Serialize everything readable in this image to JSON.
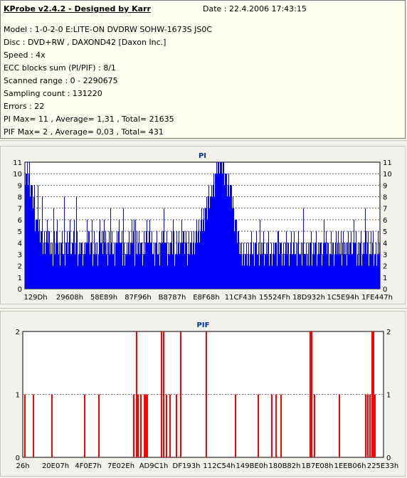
{
  "header": {
    "title": "KProbe v2.4.2 - Designed by Karr",
    "date": "Date : 22.4.2006 17:43:15"
  },
  "info_lines": [
    "Model : 1-0-2-0 E:LITE-ON DVDRW SOHW-1673S JS0C",
    "Disc : DVD+RW , DAXOND42 [Daxon Inc.]",
    "Speed : 4x",
    "ECC blocks sum (PI/PIF) : 8/1",
    "Scanned range : 0 - 2290675",
    "Sampling count : 131220",
    "Errors : 22",
    "PI Max= 11 , Average= 1,31 , Total= 21635",
    "PIF Max= 2 , Average= 0,03 , Total= 431"
  ],
  "colors": {
    "pi": "#0000ff",
    "pif": "#ff0000",
    "title": "#003399",
    "grid": "#000000"
  },
  "chart_data": [
    {
      "type": "bar",
      "title": "PI",
      "ylim": [
        0,
        11
      ],
      "yticks": [
        0,
        1,
        2,
        3,
        4,
        5,
        6,
        7,
        8,
        9,
        10,
        11
      ],
      "xtick_labels": [
        "129Dh",
        "29608h",
        "58E89h",
        "87F96h",
        "B8787h",
        "E8F68h",
        "11CF43h",
        "15524Fh",
        "18D932h",
        "1C5E94h",
        "1FE447h"
      ],
      "profile_start": [
        10,
        10,
        9,
        8,
        6,
        5,
        5,
        4,
        4,
        5,
        4,
        3,
        4,
        5,
        3,
        4,
        3,
        4,
        4,
        3,
        5,
        4,
        3,
        4,
        3,
        4,
        5,
        4,
        3,
        4,
        3,
        4,
        4,
        5,
        3,
        4,
        4,
        3,
        4,
        5,
        4,
        3,
        3,
        4,
        4,
        5,
        3,
        4,
        4,
        3,
        4,
        5,
        4,
        4,
        3,
        4,
        3,
        4,
        5,
        4,
        3,
        4,
        4,
        3,
        4,
        4,
        5,
        4,
        3,
        4,
        4,
        4,
        5,
        5,
        6,
        6,
        7,
        8,
        8,
        9,
        10,
        11,
        11,
        11,
        10,
        9,
        9,
        8,
        6,
        5,
        4,
        3,
        3,
        3,
        3,
        4,
        3,
        4,
        3,
        3,
        4,
        3,
        4,
        3,
        3,
        4,
        3,
        4,
        3,
        3,
        4,
        3,
        4,
        3,
        3,
        4,
        3,
        4,
        3,
        3,
        4,
        3,
        4,
        3,
        4,
        3,
        4,
        4,
        3,
        4,
        3,
        4,
        4,
        3,
        4,
        3,
        4,
        4,
        3,
        4,
        3,
        4,
        3,
        4,
        4,
        3,
        4,
        3,
        3,
        4
      ],
      "spikes": [
        [
          3,
          11
        ],
        [
          6,
          10
        ],
        [
          18,
          9
        ],
        [
          24,
          8
        ],
        [
          40,
          7
        ],
        [
          55,
          8
        ],
        [
          63,
          6
        ],
        [
          72,
          8
        ],
        [
          94,
          6
        ],
        [
          105,
          6
        ],
        [
          120,
          7
        ],
        [
          138,
          7
        ],
        [
          155,
          6
        ],
        [
          175,
          6
        ],
        [
          195,
          7
        ],
        [
          208,
          6
        ],
        [
          226,
          5
        ],
        [
          251,
          6
        ],
        [
          268,
          5
        ],
        [
          287,
          6
        ],
        [
          300,
          5
        ],
        [
          330,
          6
        ],
        [
          355,
          5
        ],
        [
          378,
          5
        ],
        [
          391,
          7
        ],
        [
          420,
          6
        ],
        [
          430,
          5
        ],
        [
          444,
          5
        ],
        [
          462,
          6
        ],
        [
          478,
          7
        ]
      ]
    },
    {
      "type": "bar",
      "title": "PIF",
      "ylim": [
        0,
        2
      ],
      "yticks": [
        0,
        1,
        2
      ],
      "xtick_labels": [
        "26h",
        "20E07h",
        "4F0E7h",
        "7E02Eh",
        "AD9C1h",
        "DF193h",
        "112C54h",
        "149BE0h",
        "180B82h",
        "1B7E08h",
        "1EEB06h",
        "225E33h"
      ],
      "bars": [
        [
          2,
          1
        ],
        [
          14,
          1
        ],
        [
          40,
          1
        ],
        [
          86,
          1
        ],
        [
          106,
          1
        ],
        [
          155,
          1
        ],
        [
          159,
          2
        ],
        [
          161,
          1
        ],
        [
          165,
          1
        ],
        [
          170,
          1
        ],
        [
          172,
          1
        ],
        [
          174,
          1
        ],
        [
          194,
          2
        ],
        [
          197,
          2
        ],
        [
          201,
          1
        ],
        [
          206,
          1
        ],
        [
          215,
          1
        ],
        [
          221,
          2
        ],
        [
          257,
          2
        ],
        [
          298,
          1
        ],
        [
          330,
          1
        ],
        [
          349,
          1
        ],
        [
          355,
          1
        ],
        [
          362,
          1
        ],
        [
          403,
          2
        ],
        [
          405,
          2
        ],
        [
          409,
          1
        ],
        [
          444,
          1
        ],
        [
          481,
          1
        ],
        [
          484,
          1
        ],
        [
          487,
          1
        ],
        [
          490,
          2
        ],
        [
          492,
          2
        ],
        [
          494,
          1
        ]
      ]
    }
  ]
}
